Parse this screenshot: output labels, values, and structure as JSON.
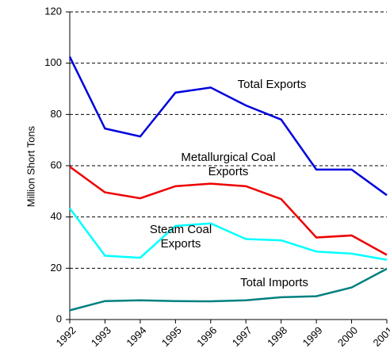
{
  "chart_data": {
    "type": "line",
    "y_label": "Million Short Tons",
    "categories": [
      "1992",
      "1993",
      "1994",
      "1995",
      "1996",
      "1997",
      "1998",
      "1999",
      "2000",
      "2001"
    ],
    "series": [
      {
        "name": "Total Exports",
        "color": "#0000dd",
        "values": [
          102.5,
          74.5,
          71.4,
          88.5,
          90.5,
          83.5,
          78,
          58.5,
          58.5,
          48.5
        ]
      },
      {
        "name": "Metallurgical Coal Exports",
        "color": "#ee0000",
        "values": [
          59.6,
          49.6,
          47.3,
          52,
          53,
          52,
          47,
          32,
          32.8,
          25.2
        ]
      },
      {
        "name": "Steam Coal Exports",
        "color": "#00ffff",
        "values": [
          43.4,
          24.9,
          24.1,
          36.5,
          37.5,
          31.4,
          30.9,
          26.5,
          25.7,
          23.3
        ]
      },
      {
        "name": "Total Imports",
        "color": "#008080",
        "values": [
          3.6,
          7.2,
          7.5,
          7.2,
          7.1,
          7.5,
          8.7,
          9.1,
          12.5,
          19.8
        ]
      }
    ],
    "ylim": [
      0,
      120
    ],
    "yticks": [
      0,
      20,
      40,
      60,
      80,
      100,
      120
    ],
    "grid": true
  }
}
